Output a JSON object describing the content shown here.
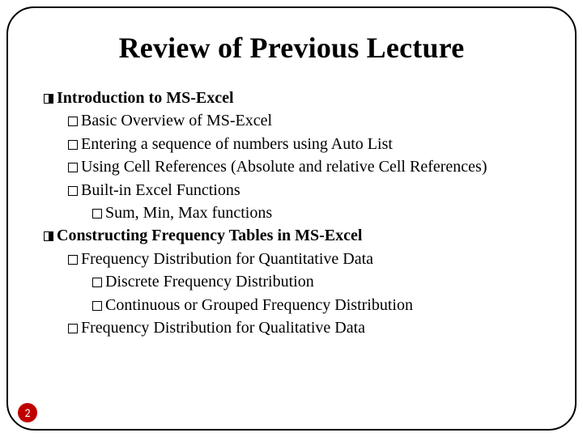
{
  "title": "Review of Previous Lecture",
  "page_number": "2",
  "colors": {
    "background": "#ffffff",
    "text": "#000000",
    "frame_border": "#000000",
    "badge_bg": "#c00000",
    "badge_text": "#ffffff"
  },
  "typography": {
    "title_fontsize_pt": 27,
    "body_fontsize_pt": 15,
    "font_family": "Times New Roman"
  },
  "bullets": [
    {
      "level": 0,
      "bold": true,
      "text": "Introduction to MS-Excel"
    },
    {
      "level": 1,
      "bold": false,
      "text": "Basic Overview of MS-Excel"
    },
    {
      "level": 1,
      "bold": false,
      "text": "Entering a sequence of numbers using Auto List"
    },
    {
      "level": 1,
      "bold": false,
      "text": "Using Cell References (Absolute and relative Cell References)"
    },
    {
      "level": 1,
      "bold": false,
      "text": "Built-in Excel Functions"
    },
    {
      "level": 2,
      "bold": false,
      "text": "Sum, Min, Max functions"
    },
    {
      "level": 0,
      "bold": true,
      "text": "Constructing Frequency Tables in MS-Excel"
    },
    {
      "level": 1,
      "bold": false,
      "text": "Frequency Distribution for Quantitative Data"
    },
    {
      "level": 2,
      "bold": false,
      "text": "Discrete Frequency Distribution"
    },
    {
      "level": 2,
      "bold": false,
      "text": "Continuous or Grouped Frequency Distribution"
    },
    {
      "level": 1,
      "bold": false,
      "text": "Frequency Distribution for Qualitative Data"
    }
  ]
}
